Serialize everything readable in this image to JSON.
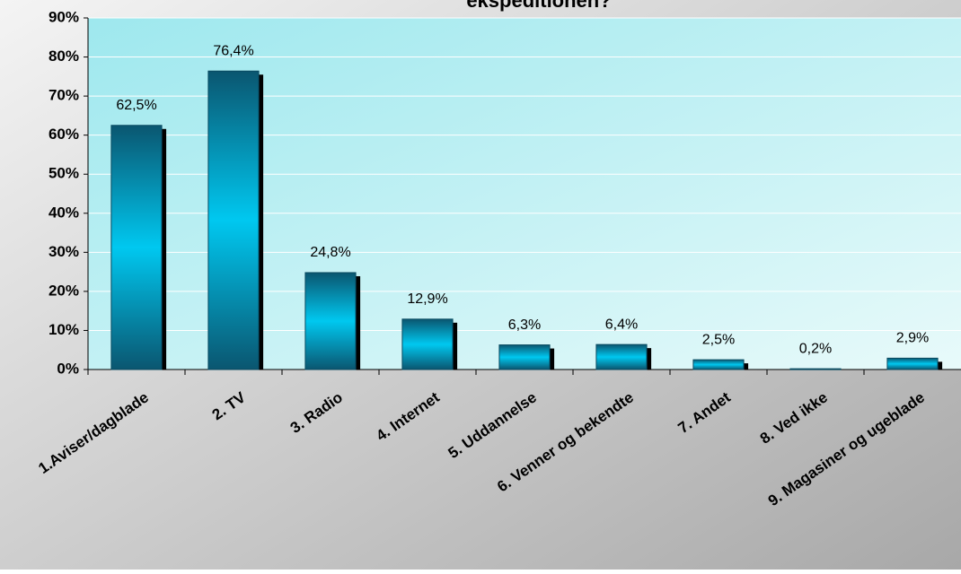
{
  "chart_data": {
    "type": "bar",
    "title": "ekspeditionen?",
    "categories": [
      "1.Aviser/dagblade",
      "2. TV",
      "3. Radio",
      "4. Internet",
      "5. Uddannelse",
      "6. Venner og bekendte",
      "7. Andet",
      "8. Ved ikke",
      "9. Magasiner og ugeblade"
    ],
    "values": [
      62.5,
      76.4,
      24.8,
      12.9,
      6.3,
      6.4,
      2.5,
      0.2,
      2.9
    ],
    "value_labels": [
      "62,5%",
      "76,4%",
      "24,8%",
      "12,9%",
      "6,3%",
      "6,4%",
      "2,5%",
      "0,2%",
      "2,9%"
    ],
    "color": "#00c8f0",
    "ylim": [
      0,
      90
    ],
    "yticks": [
      {
        "value": 0,
        "label": "0%"
      },
      {
        "value": 10,
        "label": "10%"
      },
      {
        "value": 20,
        "label": "20%"
      },
      {
        "value": 30,
        "label": "30%"
      },
      {
        "value": 40,
        "label": "40%"
      },
      {
        "value": 50,
        "label": "50%"
      },
      {
        "value": 60,
        "label": "60%"
      },
      {
        "value": 70,
        "label": "70%"
      },
      {
        "value": 80,
        "label": "80%"
      },
      {
        "value": 90,
        "label": "90%"
      }
    ],
    "grid": true
  }
}
